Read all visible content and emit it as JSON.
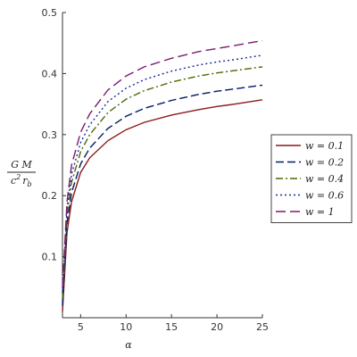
{
  "chart_data": {
    "type": "line",
    "title": "",
    "xlabel": "α",
    "ylabel": {
      "numerator": "G M",
      "denominator_base": "c",
      "denominator_sup": "2",
      "denominator_var": "r",
      "denominator_sub": "b"
    },
    "xlim": [
      3,
      25
    ],
    "ylim": [
      0,
      0.5
    ],
    "xticks": [
      5,
      10,
      15,
      20,
      25
    ],
    "yticks": [
      0.1,
      0.2,
      0.3,
      0.4,
      0.5
    ],
    "xtick_labels": [
      "5",
      "10",
      "15",
      "20",
      "25"
    ],
    "ytick_labels": [
      "0.1",
      "0.2",
      "0.3",
      "0.4",
      "0.5"
    ],
    "grid": false,
    "legend_position": "right",
    "x": [
      3,
      3.5,
      4,
      5,
      6,
      8,
      10,
      12,
      15,
      18,
      20,
      22,
      25
    ],
    "series": [
      {
        "name": "w = 0.1",
        "color": "#8b1a1a",
        "dash": "solid",
        "values": [
          0.01,
          0.14,
          0.19,
          0.238,
          0.262,
          0.29,
          0.308,
          0.32,
          0.332,
          0.341,
          0.346,
          0.35,
          0.357
        ]
      },
      {
        "name": "w = 0.2",
        "color": "#001a66",
        "dash": "longdash",
        "values": [
          0.02,
          0.155,
          0.205,
          0.252,
          0.278,
          0.31,
          0.33,
          0.343,
          0.356,
          0.366,
          0.371,
          0.375,
          0.381
        ]
      },
      {
        "name": "w = 0.4",
        "color": "#4a6b00",
        "dash": "dashdot",
        "values": [
          0.03,
          0.17,
          0.222,
          0.272,
          0.3,
          0.336,
          0.358,
          0.372,
          0.386,
          0.396,
          0.401,
          0.405,
          0.411
        ]
      },
      {
        "name": "w = 0.6",
        "color": "#1a2a99",
        "dash": "dotted",
        "values": [
          0.04,
          0.18,
          0.235,
          0.287,
          0.316,
          0.354,
          0.376,
          0.39,
          0.404,
          0.414,
          0.419,
          0.423,
          0.43
        ]
      },
      {
        "name": "w = 1",
        "color": "#7a1a6e",
        "dash": "widedash",
        "values": [
          0.05,
          0.19,
          0.25,
          0.304,
          0.334,
          0.373,
          0.396,
          0.411,
          0.425,
          0.436,
          0.441,
          0.446,
          0.454
        ]
      }
    ]
  }
}
